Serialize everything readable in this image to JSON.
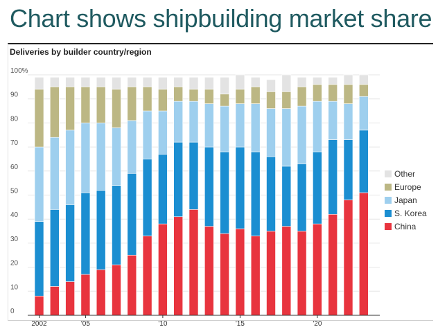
{
  "headline": "Chart shows shipbuilding market share",
  "chart_data": {
    "type": "bar",
    "stacked": true,
    "title": "Deliveries by builder country/region",
    "xlabel": "",
    "ylabel": "",
    "ylim": [
      0,
      100
    ],
    "yticks": [
      0,
      10,
      20,
      30,
      40,
      50,
      60,
      70,
      80,
      90,
      100
    ],
    "ytick_labels": [
      "0",
      "10",
      "20",
      "30",
      "40",
      "50",
      "60",
      "70",
      "80",
      "90",
      "100%"
    ],
    "categories": [
      "2002",
      "2003",
      "2004",
      "2005",
      "2006",
      "2007",
      "2008",
      "2009",
      "2010",
      "2011",
      "2012",
      "2013",
      "2014",
      "2015",
      "2016",
      "2017",
      "2018",
      "2019",
      "2020",
      "2021",
      "2022",
      "2023"
    ],
    "xtick_labels": [
      {
        "category": "2002",
        "label": "2002"
      },
      {
        "category": "2005",
        "label": "'05"
      },
      {
        "category": "2010",
        "label": "'10"
      },
      {
        "category": "2015",
        "label": "'15"
      },
      {
        "category": "2020",
        "label": "'20"
      }
    ],
    "series": [
      {
        "name": "China",
        "color": "#e8343e",
        "values": [
          8,
          12,
          14,
          17,
          19,
          21,
          25,
          33,
          38,
          41,
          44,
          37,
          34,
          36,
          33,
          35,
          37,
          35,
          38,
          42,
          48,
          51
        ]
      },
      {
        "name": "S. Korea",
        "color": "#1b8ed1",
        "values": [
          31,
          32,
          32,
          34,
          33,
          33,
          34,
          32,
          29,
          31,
          28,
          33,
          34,
          34,
          35,
          31,
          25,
          28,
          30,
          31,
          25,
          26
        ]
      },
      {
        "name": "Japan",
        "color": "#9ecfee",
        "values": [
          31,
          30,
          31,
          29,
          28,
          24,
          22,
          20,
          18,
          17,
          17,
          18,
          19,
          18,
          20,
          20,
          24,
          24,
          21,
          16,
          15,
          14
        ]
      },
      {
        "name": "Europe",
        "color": "#bcb784",
        "values": [
          24,
          21,
          18,
          15,
          15,
          16,
          14,
          10,
          9,
          6,
          5,
          6,
          5,
          6,
          7,
          7,
          7,
          8,
          7,
          7,
          8,
          5
        ]
      },
      {
        "name": "Other",
        "color": "#e3e3e3",
        "values": [
          5,
          4,
          4,
          4,
          4,
          5,
          4,
          4,
          5,
          4,
          5,
          5,
          7,
          6,
          4,
          5,
          7,
          4,
          3,
          3,
          4,
          4
        ]
      }
    ],
    "legend": {
      "position": "right",
      "order": [
        "Other",
        "Europe",
        "Japan",
        "S. Korea",
        "China"
      ]
    }
  }
}
